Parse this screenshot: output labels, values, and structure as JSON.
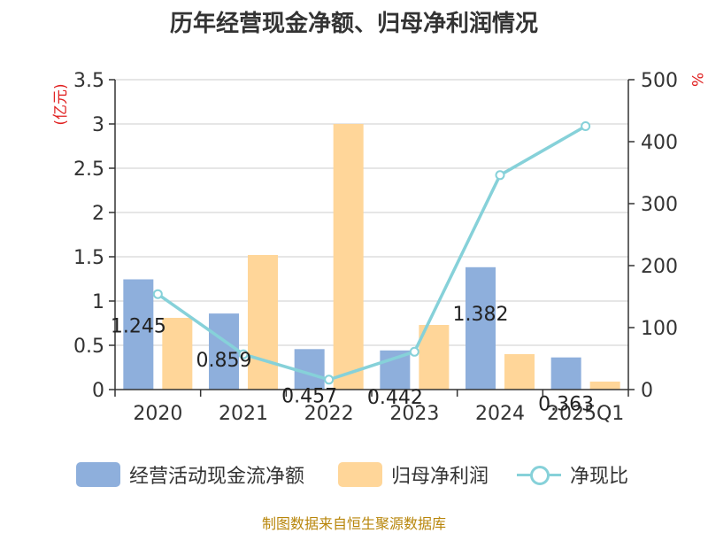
{
  "title": "历年经营现金净额、归母净利润情况",
  "source": "制图数据来自恒生聚源数据库",
  "colors": {
    "cash": "#8eafdc",
    "profit": "#ffd699",
    "ratio": "#86d1d9",
    "axis_left_label": "#e02020",
    "grid": "#cccccc"
  },
  "chart_data": {
    "type": "bar",
    "title": "历年经营现金净额、归母净利润情况",
    "categories": [
      "2020",
      "2021",
      "2022",
      "2023",
      "2024",
      "2025Q1"
    ],
    "ylabel_left": "(亿元)",
    "ylabel_right": "%",
    "ylim_left": [
      0,
      3.5
    ],
    "ylim_right": [
      0,
      500
    ],
    "yticks_left": [
      "0",
      "0.5",
      "1",
      "1.5",
      "2",
      "2.5",
      "3",
      "3.5"
    ],
    "yticks_right": [
      "0",
      "100",
      "200",
      "300",
      "400",
      "500"
    ],
    "grid": true,
    "legend_position": "bottom",
    "series": [
      {
        "name": "经营活动现金流净额",
        "type": "bar",
        "axis": "left",
        "values": [
          1.245,
          0.859,
          0.457,
          0.442,
          1.382,
          0.363
        ],
        "labels": [
          "1.245",
          "0.859",
          "0.457",
          "0.442",
          "1.382",
          "0.363"
        ]
      },
      {
        "name": "归母净利润",
        "type": "bar",
        "axis": "left",
        "values": [
          0.81,
          1.52,
          3.0,
          0.73,
          0.4,
          0.09
        ]
      },
      {
        "name": "净现比",
        "type": "line",
        "axis": "right",
        "values": [
          154,
          57,
          16,
          61,
          346,
          425
        ]
      }
    ]
  }
}
